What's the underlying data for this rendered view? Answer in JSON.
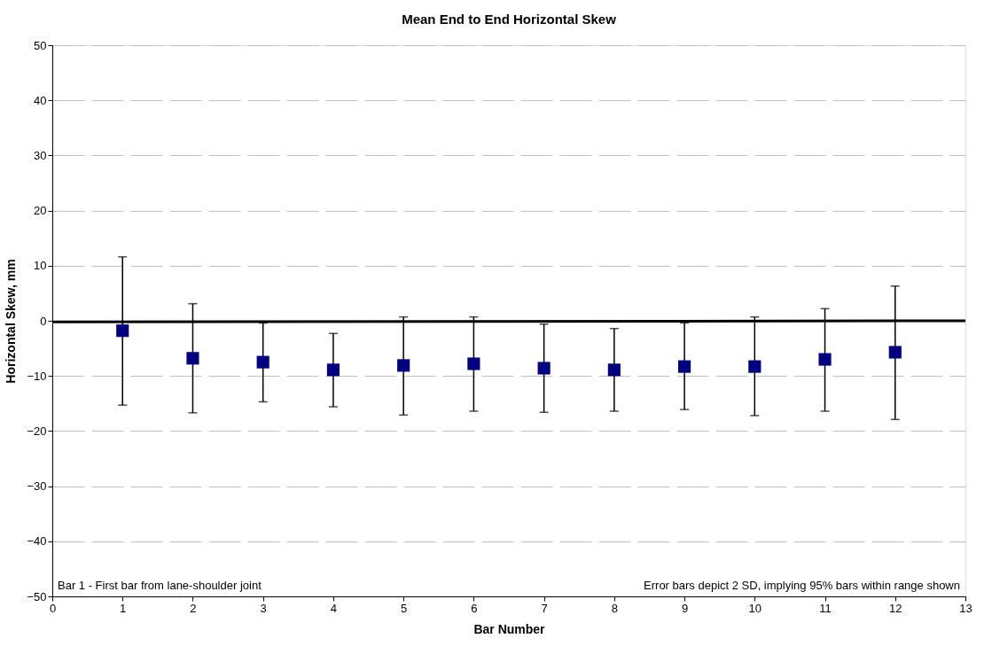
{
  "chart_data": {
    "type": "scatter",
    "title": "Mean End to End Horizontal Skew",
    "xlabel": "Bar Number",
    "ylabel": "Horizontal Skew, mm",
    "x": [
      1,
      2,
      3,
      4,
      5,
      6,
      7,
      8,
      9,
      10,
      11,
      12
    ],
    "series": [
      {
        "color": "#000080",
        "marker": "square",
        "values": [
          -1.8,
          -6.8,
          -7.5,
          -8.9,
          -8.1,
          -7.8,
          -8.6,
          -8.9,
          -8.3,
          -8.3,
          -7.0,
          -5.7
        ],
        "errors": [
          [
            -15.3,
            11.6
          ],
          [
            -16.7,
            3.1
          ],
          [
            -14.7,
            -0.4
          ],
          [
            -15.6,
            -2.3
          ],
          [
            -17.1,
            0.7
          ],
          [
            -16.4,
            0.7
          ],
          [
            -16.6,
            -0.6
          ],
          [
            -16.4,
            -1.4
          ],
          [
            -16.1,
            -0.4
          ],
          [
            -17.2,
            0.7
          ],
          [
            -16.4,
            2.2
          ],
          [
            -17.9,
            6.3
          ]
        ]
      },
      {
        "type": "line",
        "marker": "none",
        "color": "#000000",
        "x": [
          0,
          13
        ],
        "values": [
          -0.2,
          0.0
        ]
      }
    ],
    "xlim": [
      0,
      13
    ],
    "xticks": [
      0,
      1,
      2,
      3,
      4,
      5,
      6,
      7,
      8,
      9,
      10,
      11,
      12,
      13
    ],
    "ylim": [
      -50,
      50
    ],
    "yticks": [
      -50,
      -40,
      -30,
      -20,
      -10,
      0,
      10,
      20,
      30,
      40,
      50
    ],
    "grid": "y",
    "annotations": [
      "Bar 1 - First bar from lane-shoulder joint",
      "Error bars depict 2 SD, implying 95% bars within range shown"
    ]
  }
}
